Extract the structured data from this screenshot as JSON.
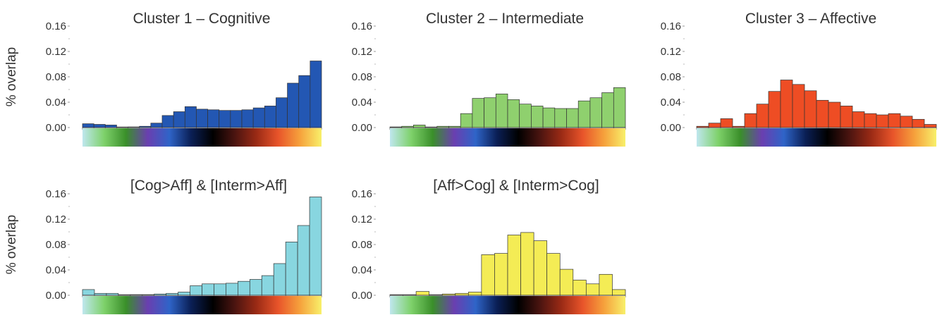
{
  "figure": {
    "ylabel": "% overlap",
    "colorbar_stops": [
      "#bfe7ee",
      "#7ed16a",
      "#3a8f2a",
      "#6a3fb0",
      "#2f64c8",
      "#0a1f55",
      "#000000",
      "#4a1410",
      "#9a2a15",
      "#e8542a",
      "#f6a13c",
      "#f8f06a"
    ]
  },
  "chart_data": [
    {
      "type": "bar",
      "title": "Cluster 1 – Cognitive",
      "ylabel": "% overlap",
      "ylim": [
        0,
        0.16
      ],
      "yticks": [
        "0.00",
        "0.04",
        "0.08",
        "0.12",
        "0.16"
      ],
      "grid": false,
      "color": "#2357b3",
      "values": [
        0.006,
        0.005,
        0.004,
        0.0,
        0.001,
        0.002,
        0.007,
        0.019,
        0.025,
        0.033,
        0.029,
        0.028,
        0.027,
        0.027,
        0.028,
        0.031,
        0.034,
        0.047,
        0.07,
        0.082,
        0.105
      ]
    },
    {
      "type": "bar",
      "title": "Cluster 2 – Intermediate",
      "ylabel": "",
      "ylim": [
        0,
        0.16
      ],
      "yticks": [
        "0.00",
        "0.04",
        "0.08",
        "0.12",
        "0.16"
      ],
      "grid": false,
      "color": "#8fd06e",
      "values": [
        0.001,
        0.002,
        0.004,
        0.0,
        0.002,
        0.002,
        0.022,
        0.046,
        0.047,
        0.053,
        0.044,
        0.037,
        0.034,
        0.031,
        0.03,
        0.03,
        0.042,
        0.047,
        0.055,
        0.063
      ]
    },
    {
      "type": "bar",
      "title": "Cluster 3 – Affective",
      "ylabel": "",
      "ylim": [
        0,
        0.16
      ],
      "yticks": [
        "0.00",
        "0.04",
        "0.08",
        "0.12",
        "0.16"
      ],
      "grid": false,
      "color": "#ee4d24",
      "values": [
        0.002,
        0.007,
        0.014,
        0.002,
        0.022,
        0.037,
        0.057,
        0.075,
        0.068,
        0.058,
        0.043,
        0.04,
        0.034,
        0.025,
        0.022,
        0.02,
        0.022,
        0.018,
        0.013,
        0.005
      ]
    },
    {
      "type": "bar",
      "title": "[Cog>Aff] & [Interm>Aff]",
      "ylabel": "% overlap",
      "ylim": [
        0,
        0.16
      ],
      "yticks": [
        "0.00",
        "0.04",
        "0.08",
        "0.12",
        "0.16"
      ],
      "grid": false,
      "color": "#88d6e0",
      "values": [
        0.009,
        0.003,
        0.003,
        0.0,
        0.001,
        0.001,
        0.002,
        0.003,
        0.005,
        0.015,
        0.018,
        0.018,
        0.019,
        0.022,
        0.025,
        0.031,
        0.05,
        0.084,
        0.11,
        0.155
      ]
    },
    {
      "type": "bar",
      "title": "[Aff>Cog] & [Interm>Cog]",
      "ylabel": "",
      "ylim": [
        0,
        0.16
      ],
      "yticks": [
        "0.00",
        "0.04",
        "0.08",
        "0.12",
        "0.16"
      ],
      "grid": false,
      "color": "#f4ec55",
      "values": [
        0.0,
        0.0,
        0.006,
        0.0,
        0.002,
        0.003,
        0.005,
        0.064,
        0.066,
        0.095,
        0.099,
        0.086,
        0.066,
        0.041,
        0.024,
        0.018,
        0.033,
        0.009
      ]
    }
  ]
}
